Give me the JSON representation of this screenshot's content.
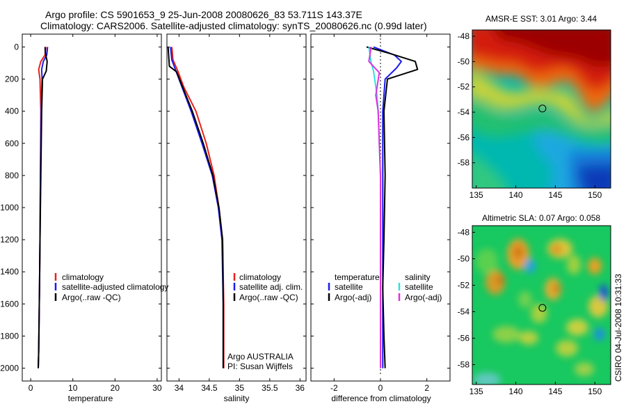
{
  "header": {
    "line1": "Argo profile: CS 5901653_9 25-Jun-2008 20080626_83 53.711S 143.37E",
    "line2": "Climatology: CARS2006. Satellite-adjusted climatology: synTS_20080626.nc (0.99d later)"
  },
  "side_label": "CSIRO 04-Jul-2008 10:31:33",
  "colors": {
    "clim": "#e8201c",
    "sat": "#1a1aee",
    "argo": "#000000",
    "sat_s": "#2ee0e0",
    "argo_adj_s": "#e030e0"
  },
  "chart_data": [
    {
      "type": "line",
      "id": "temperature",
      "xlabel": "temperature",
      "ylabel": "",
      "xlim": [
        -2,
        31
      ],
      "ylim": [
        2080,
        -80
      ],
      "xticks": [
        "0",
        "10",
        "20",
        "30"
      ],
      "yticks": [
        "0",
        "200",
        "400",
        "600",
        "800",
        "1000",
        "1200",
        "1400",
        "1600",
        "1800",
        "2000"
      ],
      "legend": [
        "climatology",
        "satellite-adjusted climatology",
        "Argo(..raw -QC)"
      ],
      "series": [
        {
          "name": "climatology",
          "x": [
            3.6,
            3.4,
            2.4,
            1.9,
            2.2,
            2.4,
            2.3,
            2.2,
            2.1,
            2.0,
            1.9,
            1.8
          ],
          "y": [
            0,
            50,
            90,
            140,
            200,
            400,
            800,
            1200,
            1500,
            1700,
            1900,
            2000
          ]
        },
        {
          "name": "satellite-adjusted climatology",
          "x": [
            4.0,
            3.8,
            3.0,
            2.6,
            2.7,
            2.5,
            2.3,
            2.2,
            2.1,
            2.0,
            1.9,
            1.8
          ],
          "y": [
            0,
            50,
            90,
            140,
            200,
            400,
            800,
            1200,
            1500,
            1700,
            1900,
            2000
          ]
        },
        {
          "name": "Argo(..raw -QC)",
          "x": [
            3.4,
            3.5,
            3.9,
            3.7,
            2.8,
            2.6,
            2.4,
            2.2,
            2.1,
            2.0,
            1.9,
            1.8
          ],
          "y": [
            0,
            40,
            90,
            150,
            200,
            400,
            800,
            1200,
            1500,
            1700,
            1900,
            2000
          ]
        }
      ]
    },
    {
      "type": "line",
      "id": "salinity",
      "xlabel": "salinity",
      "xlim": [
        33.8,
        36.1
      ],
      "ylim": [
        2080,
        -80
      ],
      "xticks": [
        "34",
        "34.5",
        "35",
        "35.5",
        "36"
      ],
      "legend": [
        "climatology",
        "satellite adj. clim.",
        "Argo(..raw -QC)"
      ],
      "annotation": [
        "Argo AUSTRALIA",
        "PI: Susan Wijffels"
      ],
      "series": [
        {
          "name": "climatology",
          "x": [
            33.88,
            33.9,
            33.98,
            34.08,
            34.28,
            34.45,
            34.58,
            34.66,
            34.72,
            34.74,
            34.74
          ],
          "y": [
            0,
            80,
            150,
            250,
            400,
            600,
            800,
            1000,
            1200,
            1600,
            2000
          ]
        },
        {
          "name": "satellite adj. clim.",
          "x": [
            33.86,
            33.88,
            33.95,
            34.05,
            34.2,
            34.38,
            34.55,
            34.65,
            34.71,
            34.73,
            34.73
          ],
          "y": [
            0,
            80,
            150,
            250,
            400,
            600,
            800,
            1000,
            1200,
            1600,
            2000
          ]
        },
        {
          "name": "Argo(..raw -QC)",
          "x": [
            33.82,
            33.84,
            33.96,
            34.06,
            34.22,
            34.4,
            34.56,
            34.66,
            34.72,
            34.73,
            34.73
          ],
          "y": [
            0,
            120,
            155,
            250,
            400,
            600,
            800,
            1000,
            1200,
            1600,
            2000
          ]
        }
      ]
    },
    {
      "type": "line",
      "id": "difference",
      "xlabel": "difference from climatology",
      "xlim": [
        -3,
        3
      ],
      "ylim": [
        2080,
        -80
      ],
      "xticks": [
        "-2",
        "0",
        "2"
      ],
      "legend_temperature": [
        "temperature",
        "satellite",
        "Argo(-adj)"
      ],
      "legend_salinity": [
        "salinity",
        "satellite",
        "Argo(-adj)"
      ],
      "series": [
        {
          "name": "temperature satellite",
          "x": [
            -0.3,
            0.6,
            0.9,
            0.7,
            0.2,
            0.1,
            0.1,
            0.1,
            0.1,
            0.1,
            0.1
          ],
          "y": [
            0,
            50,
            90,
            130,
            200,
            400,
            800,
            1200,
            1500,
            1800,
            2000
          ]
        },
        {
          "name": "temperature Argo(-adj)",
          "x": [
            -0.6,
            0.4,
            1.5,
            1.6,
            0.3,
            0.15,
            0.2,
            0.15,
            0.1,
            0.15,
            0.2
          ],
          "y": [
            0,
            40,
            90,
            140,
            200,
            400,
            800,
            1200,
            1500,
            1800,
            2000
          ]
        },
        {
          "name": "salinity satellite",
          "x": [
            -0.5,
            -0.4,
            -0.3,
            -0.15,
            -0.1,
            -0.05,
            0.0,
            0.0,
            0.0,
            0.0,
            0.0
          ],
          "y": [
            0,
            100,
            150,
            300,
            400,
            600,
            800,
            1200,
            1500,
            1800,
            2000
          ]
        },
        {
          "name": "salinity Argo(-adj)",
          "x": [
            -0.4,
            -0.5,
            -0.05,
            -0.2,
            -0.1,
            -0.05,
            0.0,
            0.0,
            0.0,
            0.0,
            0.0
          ],
          "y": [
            0,
            90,
            160,
            300,
            400,
            600,
            800,
            1200,
            1500,
            1800,
            2000
          ]
        }
      ]
    },
    {
      "type": "heatmap",
      "id": "sst",
      "title": "AMSR-E SST: 3.01  Argo: 3.44",
      "xticks": [
        "135",
        "140",
        "145",
        "150"
      ],
      "yticks": [
        "-48",
        "-50",
        "-52",
        "-54",
        "-56",
        "-58"
      ],
      "xlim": [
        134.5,
        152
      ],
      "ylim": [
        -60,
        -47.5
      ],
      "marker": {
        "lon": 143.37,
        "lat": -53.71
      }
    },
    {
      "type": "heatmap",
      "id": "sla",
      "title": "Altimetric SLA: 0.07  Argo: 0.058",
      "xticks": [
        "135",
        "140",
        "145",
        "150"
      ],
      "yticks": [
        "-48",
        "-50",
        "-52",
        "-54",
        "-56",
        "-58"
      ],
      "xlim": [
        134.5,
        152
      ],
      "ylim": [
        -59.5,
        -47.5
      ],
      "marker": {
        "lon": 143.37,
        "lat": -53.71
      }
    }
  ]
}
